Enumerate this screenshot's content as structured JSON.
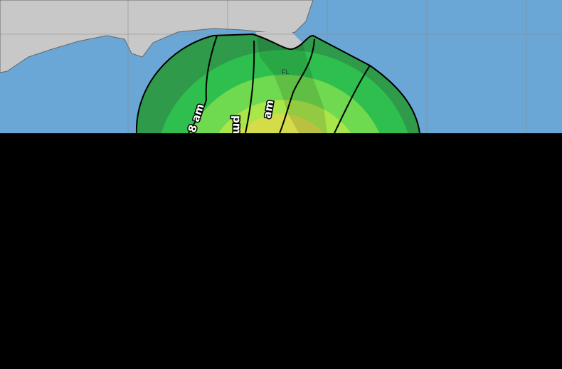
{
  "map": {
    "state_label": "FL",
    "time_labels": [
      "8 am",
      "pm",
      "am"
    ],
    "colors": {
      "ocean": "#6aa7d6",
      "land": "#c8c8c8",
      "band_outer": "#2e9a4a",
      "band_2": "#2fbf4f",
      "band_3": "#6fd94f",
      "band_4": "#a8e64a",
      "band_inner": "#d4dc4a",
      "redacted": "#000000"
    }
  }
}
